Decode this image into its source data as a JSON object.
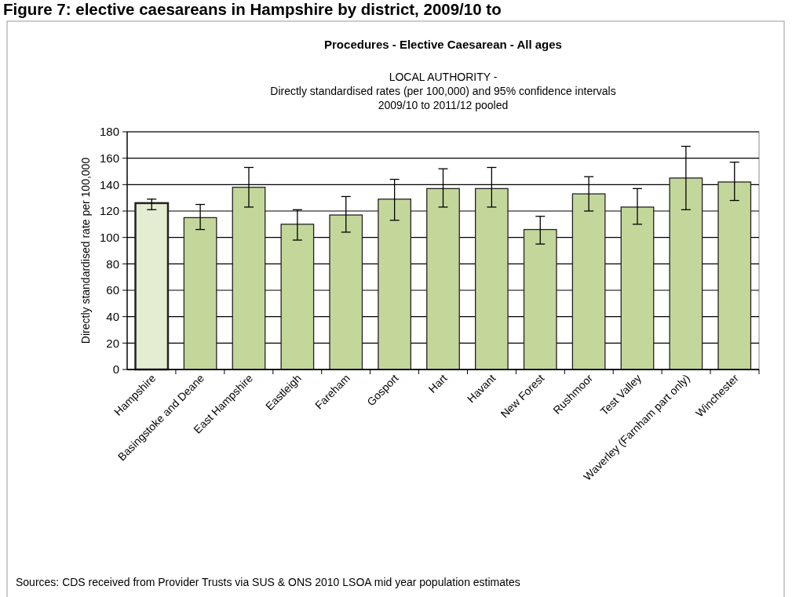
{
  "chart_data": {
    "type": "bar",
    "title": "Figure 7: elective caesareans in Hampshire by district, 2009/10 to",
    "subtitle": "Procedures - Elective Caesarean - All ages",
    "ylabel": "Directly standardised rate per 100,000",
    "annotations": [
      "LOCAL AUTHORITY  -\nDirectly standardised rates (per 100,000) and 95% confidence intervals\n2009/10 to 2011/12 pooled",
      "Sources: CDS received from Provider Trusts via SUS & ONS 2010 LSOA mid year population estimates"
    ],
    "categories": [
      "Hampshire",
      "Basingstoke and Deane",
      "East Hampshire",
      "Eastleigh",
      "Fareham",
      "Gosport",
      "Hart",
      "Havant",
      "New Forest",
      "Rushmoor",
      "Test Valley",
      "Waverley (Farnham part only)",
      "Winchester"
    ],
    "values": [
      126,
      115,
      138,
      110,
      117,
      129,
      137,
      137,
      106,
      133,
      123,
      145,
      142
    ],
    "errors": [
      [
        121,
        129
      ],
      [
        106,
        125
      ],
      [
        123,
        153
      ],
      [
        98,
        121
      ],
      [
        104,
        131
      ],
      [
        113,
        144
      ],
      [
        123,
        152
      ],
      [
        123,
        153
      ],
      [
        95,
        116
      ],
      [
        120,
        146
      ],
      [
        110,
        137
      ],
      [
        121,
        169
      ],
      [
        128,
        157
      ]
    ],
    "colors": [
      "#e4ecd2",
      "#c4d79b",
      "#c4d79b",
      "#c4d79b",
      "#c4d79b",
      "#c4d79b",
      "#c4d79b",
      "#c4d79b",
      "#c4d79b",
      "#c4d79b",
      "#c4d79b",
      "#c4d79b",
      "#c4d79b"
    ],
    "ylim": [
      0,
      180
    ],
    "yticks": [
      0,
      20,
      40,
      60,
      80,
      100,
      120,
      140,
      160,
      180
    ],
    "grid": "y"
  }
}
